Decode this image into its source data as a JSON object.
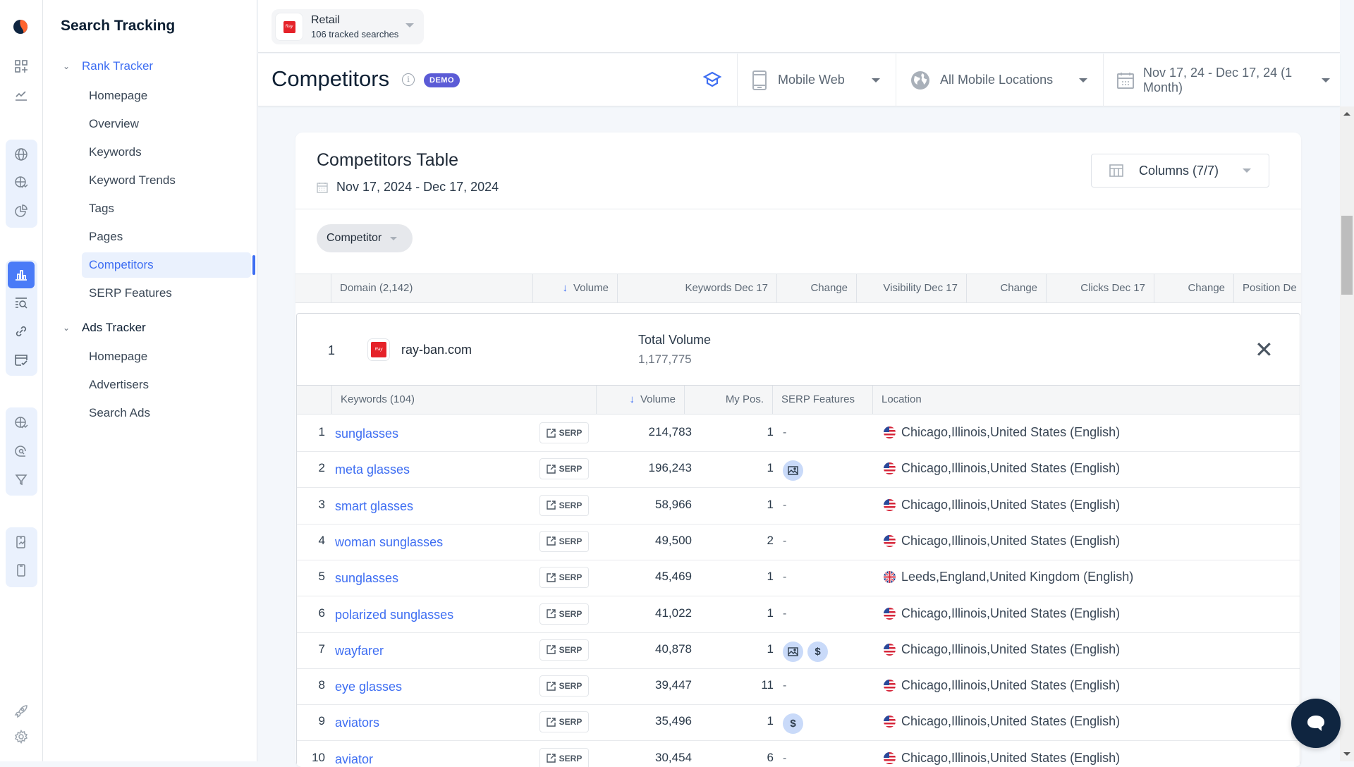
{
  "rail": {
    "logo": "semrush-logo",
    "icons": [
      "apps-add-icon",
      "trend-chart-icon",
      "globe-icon",
      "globe-trend-icon",
      "pie-chart-icon",
      "bar-chart-icon",
      "search-list-icon",
      "link-icon",
      "calendar-check-icon",
      "globe-trend-icon",
      "search-circle-icon",
      "funnel-icon",
      "mobile-chart-icon",
      "mobile-icon",
      "rocket-icon",
      "gear-icon"
    ]
  },
  "nav": {
    "title": "Search Tracking",
    "sections": [
      {
        "label": "Rank Tracker",
        "expanded": true,
        "items": [
          "Homepage",
          "Overview",
          "Keywords",
          "Keyword Trends",
          "Tags",
          "Pages",
          "Competitors",
          "SERP Features"
        ],
        "active": "Competitors"
      },
      {
        "label": "Ads Tracker",
        "expanded": true,
        "items": [
          "Homepage",
          "Advertisers",
          "Search Ads"
        ]
      }
    ]
  },
  "project": {
    "name": "Retail",
    "sub": "106 tracked searches"
  },
  "header": {
    "title": "Competitors",
    "badge": "DEMO",
    "device": "Mobile Web",
    "location": "All Mobile Locations",
    "date_range": "Nov 17, 24 - Dec 17, 24 (1 Month)"
  },
  "card": {
    "title": "Competitors Table",
    "date": "Nov 17, 2024 - Dec 17, 2024",
    "columns_button": "Columns (7/7)",
    "filter_chip": "Competitor",
    "columns": [
      "Domain (2,142)",
      "Volume",
      "Keywords Dec 17",
      "Change",
      "Visibility Dec 17",
      "Change",
      "Clicks Dec 17",
      "Change",
      "Position De"
    ]
  },
  "expanded": {
    "rank": "1",
    "domain": "ray-ban.com",
    "total_volume_label": "Total Volume",
    "total_volume": "1,177,775",
    "columns": [
      "Keywords (104)",
      "Volume",
      "My Pos.",
      "SERP Features",
      "Location"
    ],
    "serp_label": "SERP",
    "rows": [
      {
        "n": "1",
        "keyword": "sunglasses",
        "volume": "214,783",
        "pos": "1",
        "features": [],
        "location": "Chicago,Illinois,United States (English)",
        "flag": "us"
      },
      {
        "n": "2",
        "keyword": "meta glasses",
        "volume": "196,243",
        "pos": "1",
        "features": [
          "image"
        ],
        "location": "Chicago,Illinois,United States (English)",
        "flag": "us"
      },
      {
        "n": "3",
        "keyword": "smart glasses",
        "volume": "58,966",
        "pos": "1",
        "features": [],
        "location": "Chicago,Illinois,United States (English)",
        "flag": "us"
      },
      {
        "n": "4",
        "keyword": "woman sunglasses",
        "volume": "49,500",
        "pos": "2",
        "features": [],
        "location": "Chicago,Illinois,United States (English)",
        "flag": "us"
      },
      {
        "n": "5",
        "keyword": "sunglasses",
        "volume": "45,469",
        "pos": "1",
        "features": [],
        "location": "Leeds,England,United Kingdom (English)",
        "flag": "uk"
      },
      {
        "n": "6",
        "keyword": "polarized sunglasses",
        "volume": "41,022",
        "pos": "1",
        "features": [],
        "location": "Chicago,Illinois,United States (English)",
        "flag": "us"
      },
      {
        "n": "7",
        "keyword": "wayfarer",
        "volume": "40,878",
        "pos": "1",
        "features": [
          "image",
          "ads"
        ],
        "location": "Chicago,Illinois,United States (English)",
        "flag": "us"
      },
      {
        "n": "8",
        "keyword": "eye glasses",
        "volume": "39,447",
        "pos": "11",
        "features": [],
        "location": "Chicago,Illinois,United States (English)",
        "flag": "us"
      },
      {
        "n": "9",
        "keyword": "aviators",
        "volume": "35,496",
        "pos": "1",
        "features": [
          "ads"
        ],
        "location": "Chicago,Illinois,United States (English)",
        "flag": "us"
      },
      {
        "n": "10",
        "keyword": "aviator",
        "volume": "30,454",
        "pos": "6",
        "features": [],
        "location": "Chicago,Illinois,United States (English)",
        "flag": "us"
      }
    ],
    "empty_feature": "-"
  },
  "colors": {
    "accent": "#3e6ef2",
    "demo_badge": "#5b5bd6",
    "brand_red": "#e52229",
    "chat": "#0f2540"
  }
}
